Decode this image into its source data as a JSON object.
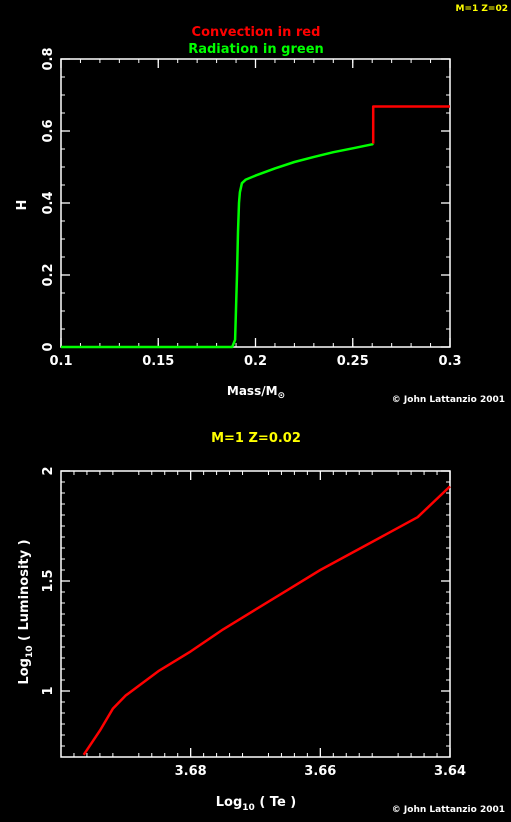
{
  "corner_label": "M=1 Z=02",
  "colors": {
    "background": "#000000",
    "axes": "#ffffff",
    "convection": "#ff0000",
    "radiation": "#00ff00",
    "title_yellow": "#ffff00"
  },
  "copyright": "© John Lattanzio 2001",
  "chart_data": [
    {
      "type": "line",
      "title_lines": [
        "Convection in red",
        "Radiation in green"
      ],
      "xlabel": "Mass/M",
      "xlabel_symbol": "⊙",
      "ylabel": "H",
      "xlim": [
        0.1,
        0.3
      ],
      "ylim": [
        0,
        0.8
      ],
      "xticks": [
        0.1,
        0.15,
        0.2,
        0.25,
        0.3
      ],
      "xtick_labels": [
        "0.1",
        "0.15",
        "0.2",
        "0.25",
        "0.3"
      ],
      "yticks": [
        0,
        0.2,
        0.4,
        0.6,
        0.8
      ],
      "ytick_labels": [
        "0",
        "0.2",
        "0.4",
        "0.6",
        "0.8"
      ],
      "series": [
        {
          "color": "#00ff00",
          "x": [
            0.1,
            0.188,
            0.1895,
            0.1905,
            0.191,
            0.1915,
            0.192,
            0.193,
            0.195,
            0.2,
            0.21,
            0.22,
            0.23,
            0.24,
            0.25,
            0.26,
            0.2605
          ],
          "y": [
            0,
            0,
            0.02,
            0.2,
            0.32,
            0.4,
            0.43,
            0.455,
            0.465,
            0.476,
            0.496,
            0.514,
            0.528,
            0.541,
            0.552,
            0.563,
            0.565
          ]
        },
        {
          "color": "#ff0000",
          "x": [
            0.2605,
            0.2605,
            0.3
          ],
          "y": [
            0.565,
            0.668,
            0.668
          ]
        }
      ]
    },
    {
      "type": "line",
      "title": "M=1 Z=0.02",
      "xlabel": "Log",
      "xlabel_sub": "10",
      "xlabel_rest": " ( Te )",
      "ylabel": "Log",
      "ylabel_sub": "10",
      "ylabel_rest": " ( Luminosity )",
      "xlim": [
        3.7,
        3.64
      ],
      "ylim": [
        0.7,
        2.0
      ],
      "xticks": [
        3.68,
        3.66,
        3.64
      ],
      "xtick_labels": [
        "3.68",
        "3.66",
        "3.64"
      ],
      "yticks": [
        1,
        1.5,
        2
      ],
      "ytick_labels": [
        "1",
        "1.5",
        "2"
      ],
      "series": [
        {
          "color": "#ff0000",
          "x": [
            3.6965,
            3.694,
            3.692,
            3.69,
            3.685,
            3.68,
            3.675,
            3.67,
            3.665,
            3.66,
            3.655,
            3.65,
            3.645,
            3.64
          ],
          "y": [
            0.71,
            0.82,
            0.92,
            0.98,
            1.09,
            1.18,
            1.28,
            1.37,
            1.46,
            1.55,
            1.63,
            1.71,
            1.79,
            1.93
          ]
        }
      ]
    }
  ]
}
